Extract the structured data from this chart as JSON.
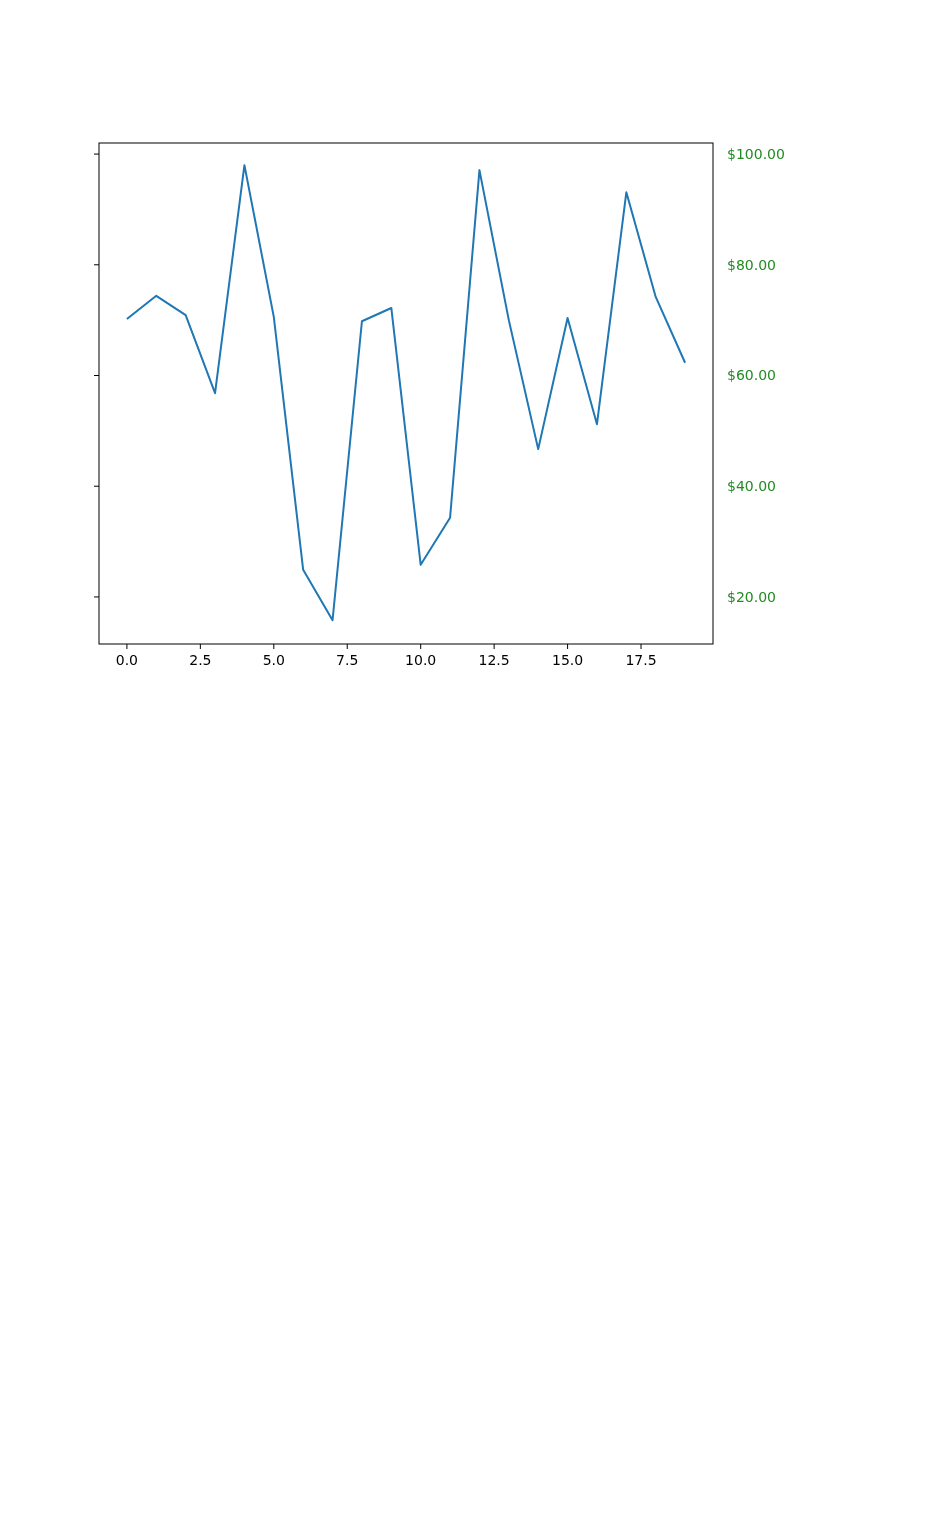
{
  "chart_data": {
    "type": "line",
    "x": [
      0,
      1,
      2,
      3,
      4,
      5,
      6,
      7,
      8,
      9,
      10,
      11,
      12,
      13,
      14,
      15,
      16,
      17,
      18,
      19
    ],
    "series": [
      {
        "color": "#1f77b4",
        "values": [
          70.2,
          74.4,
          70.9,
          56.8,
          98.0,
          70.6,
          24.9,
          15.8,
          69.8,
          72.2,
          25.8,
          34.3,
          97.1,
          70.0,
          46.7,
          70.4,
          51.2,
          93.1,
          74.2,
          62.3
        ]
      }
    ],
    "xlim": [
      -0.95,
      19.95
    ],
    "xticks": [
      {
        "value": 0,
        "label": "0.0"
      },
      {
        "value": 2.5,
        "label": "2.5"
      },
      {
        "value": 5,
        "label": "5.0"
      },
      {
        "value": 7.5,
        "label": "7.5"
      },
      {
        "value": 10,
        "label": "10.0"
      },
      {
        "value": 12.5,
        "label": "12.5"
      },
      {
        "value": 15,
        "label": "15.0"
      },
      {
        "value": 17.5,
        "label": "17.5"
      }
    ],
    "ylim": [
      11.5,
      102
    ],
    "yticks": [
      {
        "value": 20,
        "label": "$20.00"
      },
      {
        "value": 40,
        "label": "$40.00"
      },
      {
        "value": 60,
        "label": "$60.00"
      },
      {
        "value": 80,
        "label": "$80.00"
      },
      {
        "value": 100,
        "label": "$100.00"
      }
    ],
    "grid": false,
    "marker": "none",
    "line_style": "solid"
  }
}
